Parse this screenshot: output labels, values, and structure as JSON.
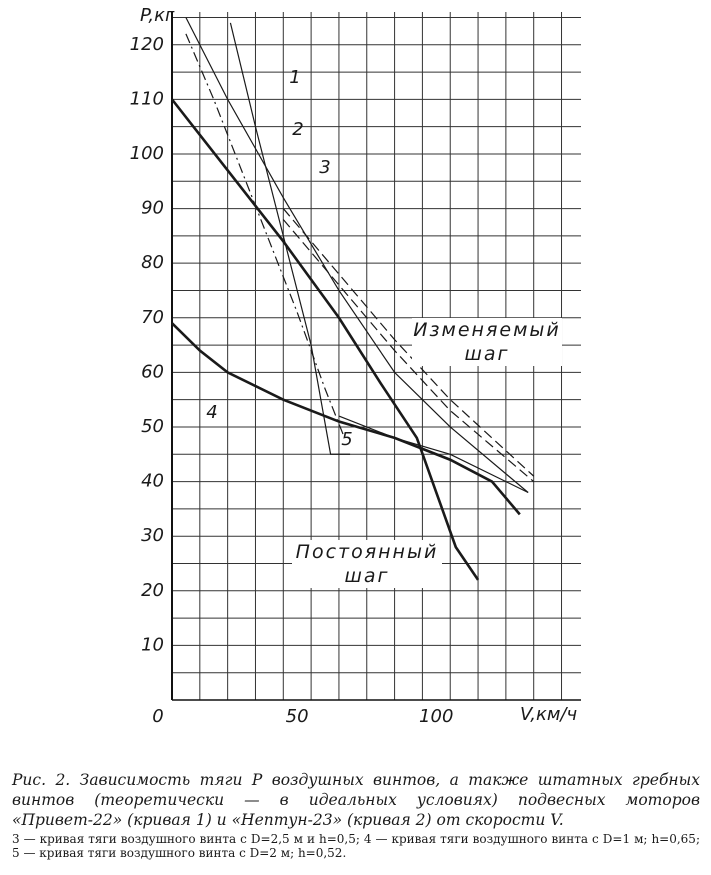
{
  "chart_data": {
    "type": "line",
    "xlabel": "V,км/ч",
    "ylabel": "P,кг",
    "xlim": [
      0,
      147
    ],
    "ylim": [
      0,
      126
    ],
    "xticks": [
      0,
      50,
      100
    ],
    "yticks": [
      10,
      20,
      30,
      40,
      50,
      60,
      70,
      80,
      90,
      100,
      110,
      120
    ],
    "x_grid_step": 10,
    "y_grid_step": 5,
    "grid": true,
    "color": "#1a1a1a",
    "series": [
      {
        "name": "1",
        "style": "thin",
        "x": [
          21,
          30,
          40,
          50,
          57,
          64
        ],
        "values": [
          124,
          105,
          85,
          65,
          45,
          45
        ]
      },
      {
        "name": "2",
        "style": "dashdot",
        "x": [
          5,
          15,
          25,
          35,
          45,
          55,
          62
        ],
        "values": [
          122,
          110,
          97,
          84,
          71,
          57,
          48
        ]
      },
      {
        "name": "3",
        "style": "thin",
        "x": [
          5,
          20,
          40,
          60,
          80,
          100,
          128
        ],
        "values": [
          125,
          110,
          92,
          75,
          60,
          50,
          38
        ]
      },
      {
        "name": "4",
        "style": "thick",
        "x": [
          0,
          10,
          20,
          40,
          60,
          80,
          100,
          115,
          125
        ],
        "values": [
          69,
          64,
          60,
          55,
          51,
          48,
          44,
          40,
          34
        ]
      },
      {
        "name": "5",
        "style": "thick",
        "x": [
          0,
          20,
          40,
          60,
          75,
          88,
          95,
          102,
          110
        ],
        "values": [
          110,
          97,
          84,
          70,
          58,
          48,
          38,
          28,
          22
        ]
      },
      {
        "style": "dashed",
        "x": [
          40,
          60,
          80,
          100,
          130
        ],
        "values": [
          90,
          78,
          66,
          55,
          41
        ]
      },
      {
        "style": "dashed",
        "x": [
          40,
          60,
          80,
          100,
          130
        ],
        "values": [
          88,
          76,
          64,
          53,
          40
        ]
      },
      {
        "style": "thin",
        "x": [
          60,
          80,
          100,
          128
        ],
        "values": [
          52,
          48,
          45,
          38
        ]
      }
    ],
    "annotations": [
      "Изменяемый шаг",
      "Постоянный шаг"
    ],
    "caption": "Рис. 2. Зависимость тяги P воздушных винтов, а также штатных гребных винтов (теоретически — в идеальных условиях) подвесных моторов «Привет-22» (кривая 1) и «Нептун-23» (кривая 2) от скорости V.",
    "note": "3 — кривая тяги воздушного винта с D=2,5 м и h=0,5; 4 — кривая тяги воздушного винта с D=1 м; h=0,65; 5 — кривая тяги воздушного винта с D=2 м; h=0,52."
  }
}
